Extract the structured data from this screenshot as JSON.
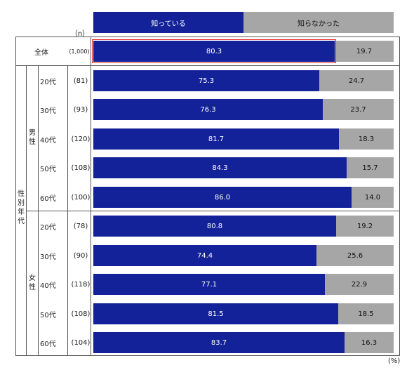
{
  "chart_data": {
    "type": "bar",
    "stacked": true,
    "orientation": "horizontal",
    "series": [
      {
        "name": "知っている",
        "color": "#14229a"
      },
      {
        "name": "知らなかった",
        "color": "#a6a6a6"
      }
    ],
    "n_header": "（n）",
    "unit_label": "(%)",
    "group_label": "性別年代",
    "rows": [
      {
        "group": "",
        "label": "全体",
        "n": "(1,000)",
        "know": 80.3,
        "notknow": 19.7,
        "highlight": true
      },
      {
        "group": "男性",
        "label": "20代",
        "n": "(81)",
        "know": 75.3,
        "notknow": 24.7
      },
      {
        "group": "男性",
        "label": "30代",
        "n": "(93)",
        "know": 76.3,
        "notknow": 23.7
      },
      {
        "group": "男性",
        "label": "40代",
        "n": "(120)",
        "know": 81.7,
        "notknow": 18.3
      },
      {
        "group": "男性",
        "label": "50代",
        "n": "(108)",
        "know": 84.3,
        "notknow": 15.7
      },
      {
        "group": "男性",
        "label": "60代",
        "n": "(100)",
        "know": 86.0,
        "notknow": 14.0
      },
      {
        "group": "女性",
        "label": "20代",
        "n": "(78)",
        "know": 80.8,
        "notknow": 19.2
      },
      {
        "group": "女性",
        "label": "30代",
        "n": "(90)",
        "know": 74.4,
        "notknow": 25.6
      },
      {
        "group": "女性",
        "label": "40代",
        "n": "(118)",
        "know": 77.1,
        "notknow": 22.9
      },
      {
        "group": "女性",
        "label": "50代",
        "n": "(108)",
        "know": 81.5,
        "notknow": 18.5
      },
      {
        "group": "女性",
        "label": "60代",
        "n": "(104)",
        "know": 83.7,
        "notknow": 16.3
      }
    ],
    "value_format": "one-decimal",
    "xlim": [
      0,
      100
    ]
  },
  "labels": {
    "male": "男性",
    "female": "女性"
  }
}
